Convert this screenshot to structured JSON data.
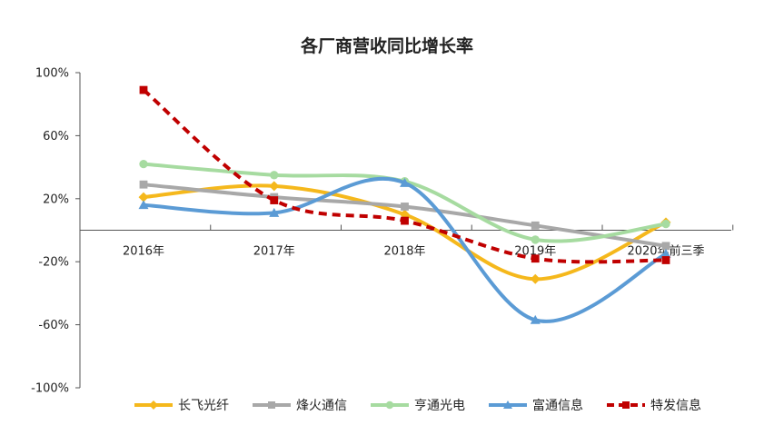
{
  "chart_data": {
    "type": "line",
    "title": "各厂商营收同比增长率",
    "xlabel": "",
    "ylabel": "",
    "categories": [
      "2016年",
      "2017年",
      "2018年",
      "2019年",
      "2020年前三季"
    ],
    "ylim": [
      -100,
      100
    ],
    "yticks": [
      100,
      60,
      20,
      -20,
      -60,
      -100
    ],
    "ytick_labels": [
      "100%",
      "60%",
      "20%",
      "-20%",
      "-60%",
      "-100%"
    ],
    "grid": false,
    "legend_position": "bottom",
    "smooth": true,
    "series": [
      {
        "name": "长飞光纤",
        "color": "#F5B81C",
        "marker": "diamond",
        "dashed": false,
        "values": [
          21,
          28,
          10,
          -31,
          5
        ]
      },
      {
        "name": "烽火通信",
        "color": "#A8A8A8",
        "marker": "square",
        "dashed": false,
        "values": [
          29,
          21,
          15,
          3,
          -10
        ]
      },
      {
        "name": "亨通光电",
        "color": "#A6DBA0",
        "marker": "circle",
        "dashed": false,
        "values": [
          42,
          35,
          31,
          -6,
          4
        ]
      },
      {
        "name": "富通信息",
        "color": "#5B9BD5",
        "marker": "triangle",
        "dashed": false,
        "values": [
          16,
          11,
          30,
          -57,
          -15
        ]
      },
      {
        "name": "特发信息",
        "color": "#C00000",
        "marker": "square",
        "dashed": true,
        "values": [
          89,
          19,
          6,
          -18,
          -19
        ]
      }
    ]
  }
}
